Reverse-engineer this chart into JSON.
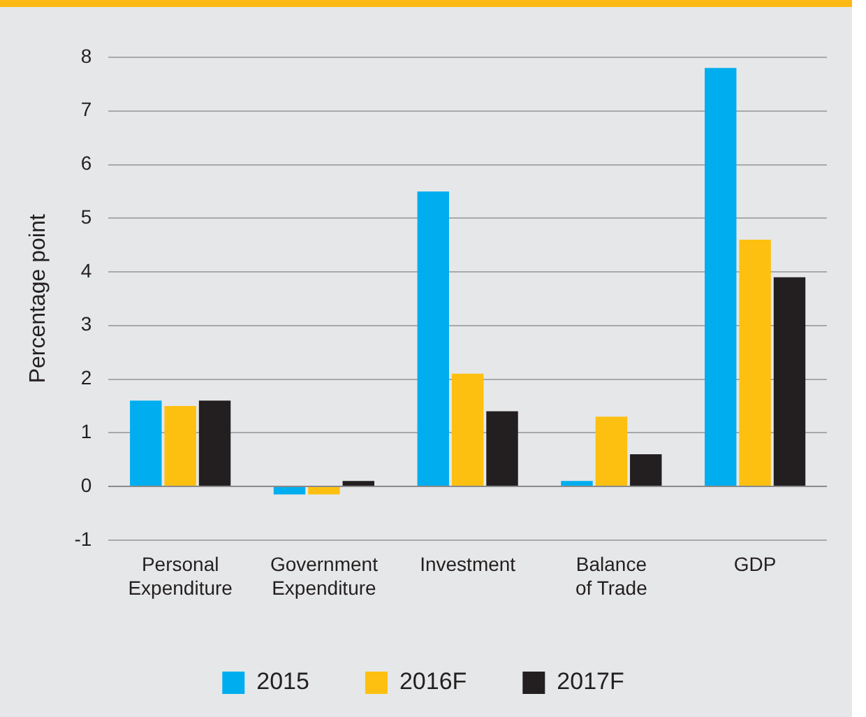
{
  "chart_data": {
    "type": "bar",
    "ylabel": "Percentage point",
    "categories": [
      "Personal\nExpenditure",
      "Government\nExpenditure",
      "Investment",
      "Balance\nof Trade",
      "GDP"
    ],
    "series": [
      {
        "name": "2015",
        "color": "#00aeef",
        "values": [
          1.6,
          -0.15,
          5.5,
          0.1,
          7.8
        ]
      },
      {
        "name": "2016F",
        "color": "#fdc010",
        "values": [
          1.5,
          -0.15,
          2.1,
          1.3,
          4.6
        ]
      },
      {
        "name": "2017F",
        "color": "#231f20",
        "values": [
          1.6,
          0.1,
          1.4,
          0.6,
          3.9
        ]
      }
    ],
    "ylim": [
      -1,
      8
    ],
    "yticks": [
      -1,
      0,
      1,
      2,
      3,
      4,
      5,
      6,
      7,
      8
    ],
    "grid": "y",
    "legend": "bottom"
  }
}
